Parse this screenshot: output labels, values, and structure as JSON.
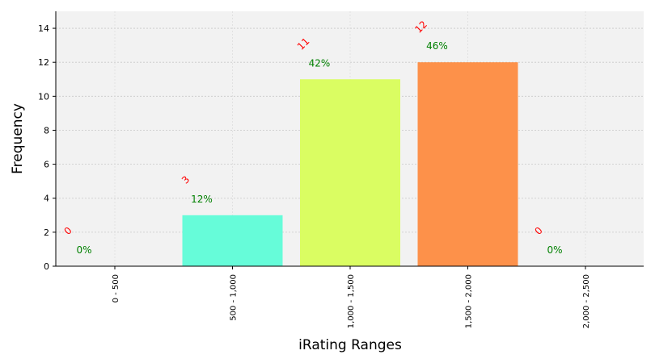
{
  "chart_data": {
    "type": "bar",
    "title": "",
    "xlabel": "iRating Ranges",
    "ylabel": "Frequency",
    "categories": [
      "0 - 500",
      "500 - 1,000",
      "1,000 - 1,500",
      "1,500 - 2,000",
      "2,000 - 2,500"
    ],
    "values": [
      0,
      3,
      11,
      12,
      0
    ],
    "count_labels": [
      "0",
      "3",
      "11",
      "12",
      "0"
    ],
    "percent_labels": [
      "0%",
      "12%",
      "42%",
      "46%",
      "0%"
    ],
    "bar_colors": [
      "#3a3ad8",
      "#66fcd9",
      "#dafd62",
      "#fd914a",
      "#a01e04"
    ],
    "count_label_color": "#ff0000",
    "percent_label_color": "#008000",
    "ylim": [
      0,
      15
    ],
    "yticks": [
      0,
      2,
      4,
      6,
      8,
      10,
      12,
      14
    ],
    "ytick_labels": [
      "0",
      "2",
      "4",
      "6",
      "8",
      "10",
      "12",
      "14"
    ],
    "grid": true,
    "background_color": "#f2f2f2"
  }
}
